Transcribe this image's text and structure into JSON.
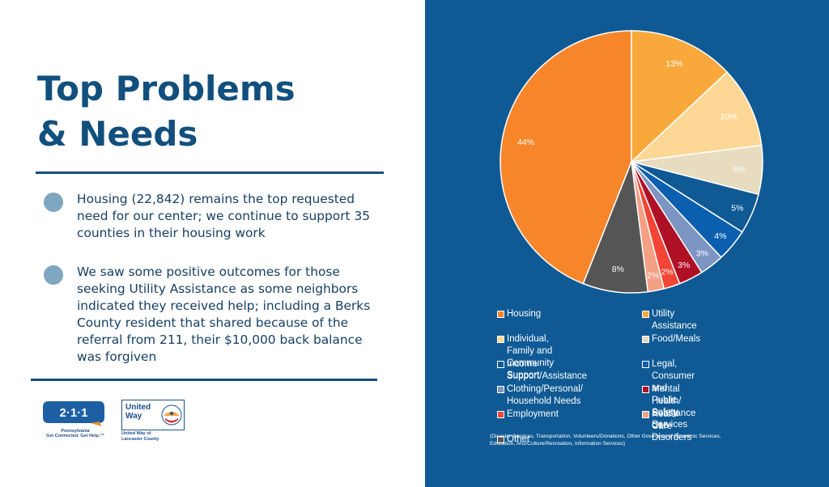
{
  "slide": {
    "title": "Top Problems\n& Needs",
    "bullets": [
      "Housing (22,842) remains the top requested need for our center; we continue to support 35 counties in their housing work",
      "We saw some positive outcomes for those seeking Utility Assistance as some neighbors indicated they received help; including a Berks County resident that shared because of the referral from 211, their $10,000 back balance was forgiven"
    ],
    "logo_211": {
      "mark": "2·1·1",
      "caption_1": "Pennsylvania",
      "caption_2": "Get Connected. Get Help.™"
    },
    "logo_united_way": {
      "mark_1": "United",
      "mark_2": "Way",
      "caption_1": "United Way of",
      "caption_2": "Lancaster County"
    }
  },
  "colors": {
    "panel": "#0f5a94",
    "title": "#114f7d",
    "bullet_dot": "#7ea6c0"
  },
  "chart_data": {
    "type": "pie",
    "title": "",
    "slices": [
      {
        "name": "Housing",
        "value": 44,
        "label": "44%",
        "color": "#f7862b"
      },
      {
        "name": "Utility Assistance",
        "value": 13,
        "label": "13%",
        "color": "#f9a93c"
      },
      {
        "name": "Individual, Family and Community Support",
        "value": 10,
        "label": "10%",
        "color": "#fdd795"
      },
      {
        "name": "Food/Meals",
        "value": 6,
        "label": "6%",
        "color": "#e7dcc0"
      },
      {
        "name": "Income Support/Assistance",
        "value": 5,
        "label": "5%",
        "color": "#0f5a94"
      },
      {
        "name": "Legal, Consumer and Public Safety Services",
        "value": 4,
        "label": "4%",
        "color": "#0a5fae"
      },
      {
        "name": "Clothing/Personal/ Household Needs",
        "value": 3,
        "label": "3%",
        "color": "#7c95c3"
      },
      {
        "name": "Mental Health/ Substance Use Disorders",
        "value": 3,
        "label": "3%",
        "color": "#b01026"
      },
      {
        "name": "Employment",
        "value": 2,
        "label": "2%",
        "color": "#f24535"
      },
      {
        "name": "Health Care",
        "value": 2,
        "label": "2%",
        "color": "#f4a085"
      },
      {
        "name": "Other",
        "value": 8,
        "label": "8%",
        "color": "#555555"
      }
    ],
    "legend_labels": [
      "Housing",
      "Utility Assistance",
      "Individual, Family and\nCommunity Support",
      "Food/Meals",
      "Income Support/Assistance",
      "Legal, Consumer and\nPublic Safety Services",
      "Clothing/Personal/\nHousehold Needs",
      "Mental Health/\nSubstance Use Disorders",
      "Employment",
      "Health Care",
      "Other"
    ],
    "other_note": "(Disaster Services, Transportation, Volunteers/Donations, Other Government/ Economic Services, Education, Arts/Culture/Recreation, Information Services)",
    "legend_position": "bottom"
  }
}
